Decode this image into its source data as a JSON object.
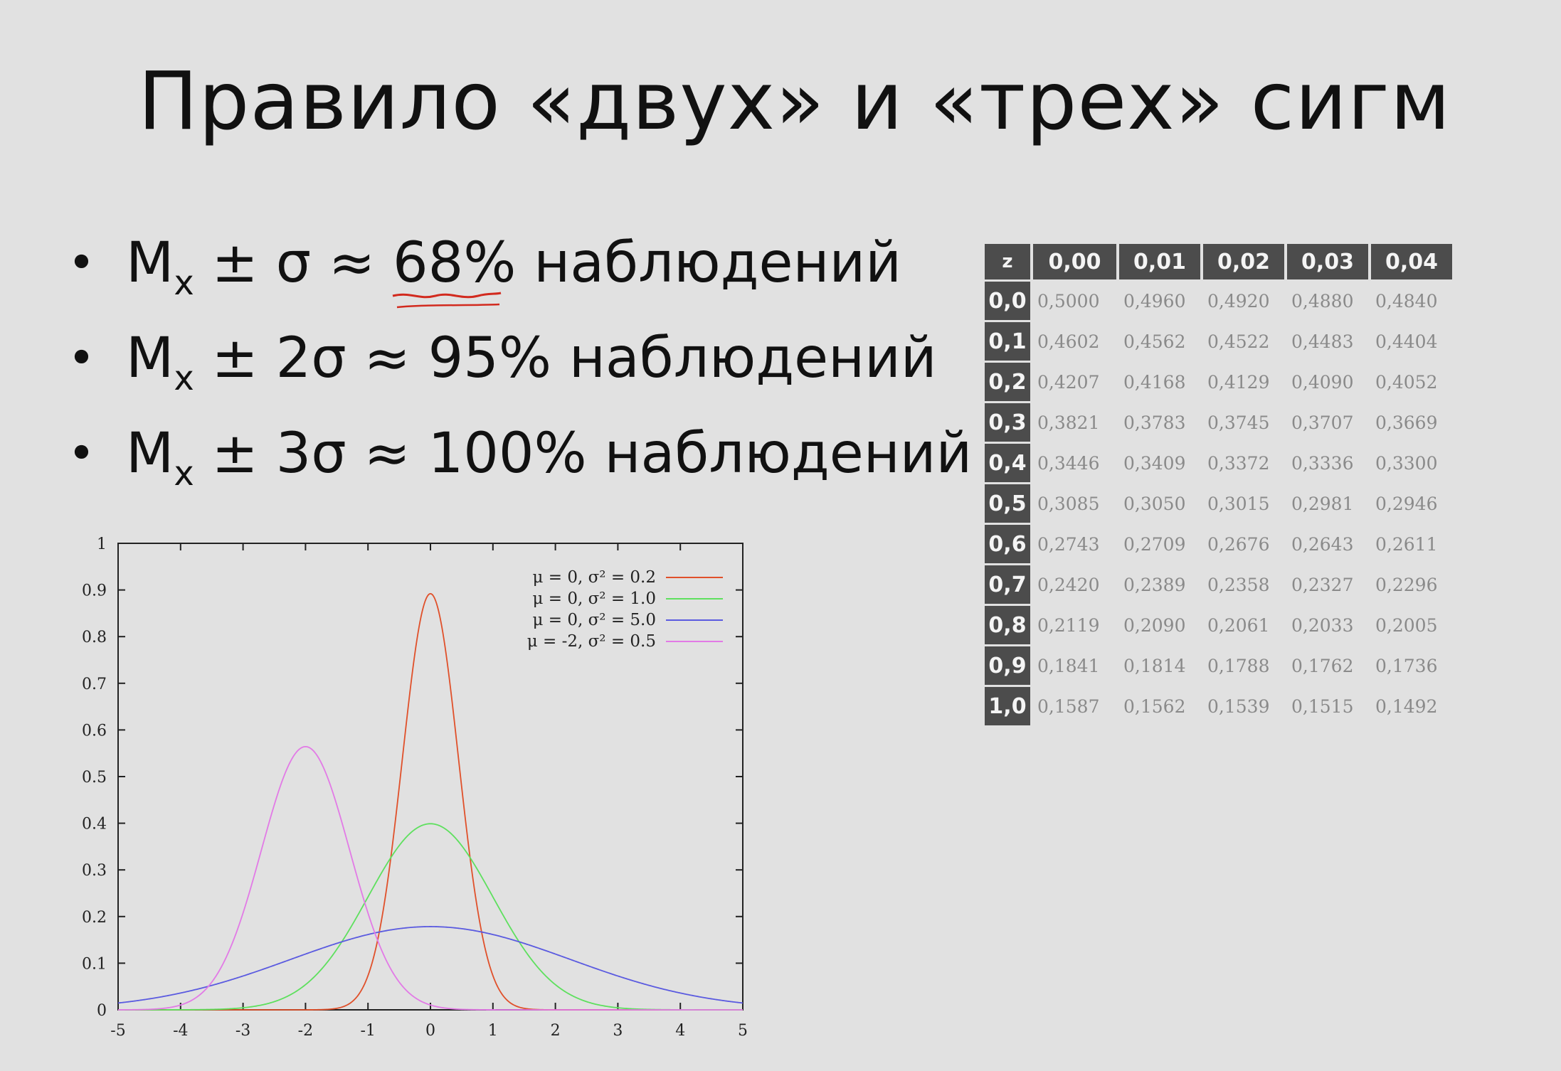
{
  "title": "Правило «двух» и «трех» сигм",
  "bullets": [
    {
      "mark": "•",
      "main": "M",
      "sub": "x",
      "mid": " ± σ ≈ ",
      "pct": "68%",
      "tail": " наблюдений"
    },
    {
      "mark": "•",
      "main": "M",
      "sub": "x",
      "mid": " ± 2σ ≈ ",
      "pct": "95%",
      "tail": " наблюдений"
    },
    {
      "mark": "•",
      "main": "M",
      "sub": "x",
      "mid": " ± 3σ ≈ ",
      "pct": "100%",
      "tail": " наблюдений"
    }
  ],
  "annotation_color": "#d22a1e",
  "z_table": {
    "corner": "z",
    "columns": [
      "0,00",
      "0,01",
      "0,02",
      "0,03",
      "0,04"
    ],
    "rows": [
      {
        "z": "0,0",
        "v": [
          "0,5000",
          "0,4960",
          "0,4920",
          "0,4880",
          "0,4840"
        ]
      },
      {
        "z": "0,1",
        "v": [
          "0,4602",
          "0,4562",
          "0,4522",
          "0,4483",
          "0,4404"
        ]
      },
      {
        "z": "0,2",
        "v": [
          "0,4207",
          "0,4168",
          "0,4129",
          "0,4090",
          "0,4052"
        ]
      },
      {
        "z": "0,3",
        "v": [
          "0,3821",
          "0,3783",
          "0,3745",
          "0,3707",
          "0,3669"
        ]
      },
      {
        "z": "0,4",
        "v": [
          "0,3446",
          "0,3409",
          "0,3372",
          "0,3336",
          "0,3300"
        ]
      },
      {
        "z": "0,5",
        "v": [
          "0,3085",
          "0,3050",
          "0,3015",
          "0,2981",
          "0,2946"
        ]
      },
      {
        "z": "0,6",
        "v": [
          "0,2743",
          "0,2709",
          "0,2676",
          "0,2643",
          "0,2611"
        ]
      },
      {
        "z": "0,7",
        "v": [
          "0,2420",
          "0,2389",
          "0,2358",
          "0,2327",
          "0,2296"
        ]
      },
      {
        "z": "0,8",
        "v": [
          "0,2119",
          "0,2090",
          "0,2061",
          "0,2033",
          "0,2005"
        ]
      },
      {
        "z": "0,9",
        "v": [
          "0,1841",
          "0,1814",
          "0,1788",
          "0,1762",
          "0,1736"
        ]
      },
      {
        "z": "1,0",
        "v": [
          "0,1587",
          "0,1562",
          "0,1539",
          "0,1515",
          "0,1492"
        ]
      }
    ]
  },
  "chart_data": {
    "type": "line",
    "title": "",
    "xlabel": "",
    "ylabel": "",
    "xlim": [
      -5,
      5
    ],
    "ylim": [
      0,
      1
    ],
    "xticks": [
      "-5",
      "-4",
      "-3",
      "-2",
      "-1",
      "0",
      "1",
      "2",
      "3",
      "4",
      "5"
    ],
    "yticks": [
      "0",
      "0.1",
      "0.2",
      "0.3",
      "0.4",
      "0.5",
      "0.6",
      "0.7",
      "0.8",
      "0.9",
      "1"
    ],
    "grid": false,
    "legend_position": "top-right",
    "series": [
      {
        "name": "μ =  0, σ² = 0.2",
        "mu": 0,
        "var": 0.2,
        "color": "#e0502a",
        "peak": 0.892
      },
      {
        "name": "μ =  0, σ² = 1.0",
        "mu": 0,
        "var": 1.0,
        "color": "#5ee05e",
        "peak": 0.399
      },
      {
        "name": "μ =  0, σ² = 5.0",
        "mu": 0,
        "var": 5.0,
        "color": "#5a5ae0",
        "peak": 0.178
      },
      {
        "name": "μ = -2, σ² = 0.5",
        "mu": -2,
        "var": 0.5,
        "color": "#e27ae6",
        "peak": 0.564
      }
    ]
  }
}
